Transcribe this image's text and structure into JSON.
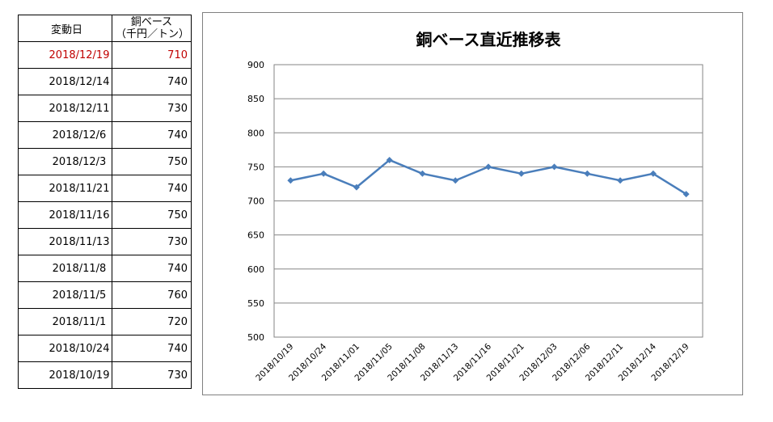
{
  "table": {
    "header": {
      "date": "変動日",
      "value_line1": "銅ベース",
      "value_line2": "（千円／トン）"
    },
    "highlight_color": "#c00000",
    "rows": [
      {
        "date": "2018/12/19",
        "value": "710",
        "highlight": true
      },
      {
        "date": "2018/12/14",
        "value": "740"
      },
      {
        "date": "2018/12/11",
        "value": "730"
      },
      {
        "date": "2018/12/6",
        "value": "740"
      },
      {
        "date": "2018/12/3",
        "value": "750"
      },
      {
        "date": "2018/11/21",
        "value": "740"
      },
      {
        "date": "2018/11/16",
        "value": "750"
      },
      {
        "date": "2018/11/13",
        "value": "730"
      },
      {
        "date": "2018/11/8",
        "value": "740"
      },
      {
        "date": "2018/11/5",
        "value": "760"
      },
      {
        "date": "2018/11/1",
        "value": "720"
      },
      {
        "date": "2018/10/24",
        "value": "740"
      },
      {
        "date": "2018/10/19",
        "value": "730"
      }
    ]
  },
  "chart_data": {
    "type": "line",
    "title": "銅ベース直近推移表",
    "xlabel": "",
    "ylabel": "",
    "categories": [
      "2018/10/19",
      "2018/10/24",
      "2018/11/01",
      "2018/11/05",
      "2018/11/08",
      "2018/11/13",
      "2018/11/16",
      "2018/11/21",
      "2018/12/03",
      "2018/12/06",
      "2018/12/11",
      "2018/12/14",
      "2018/12/19"
    ],
    "series": [
      {
        "values": [
          730,
          740,
          720,
          760,
          740,
          730,
          750,
          740,
          750,
          740,
          730,
          740,
          710
        ]
      }
    ],
    "ylim": [
      500,
      900
    ],
    "yticks": [
      500,
      550,
      600,
      650,
      700,
      750,
      800,
      850,
      900
    ],
    "grid": true,
    "legend": "none",
    "line_color": "#4a7ebb"
  }
}
